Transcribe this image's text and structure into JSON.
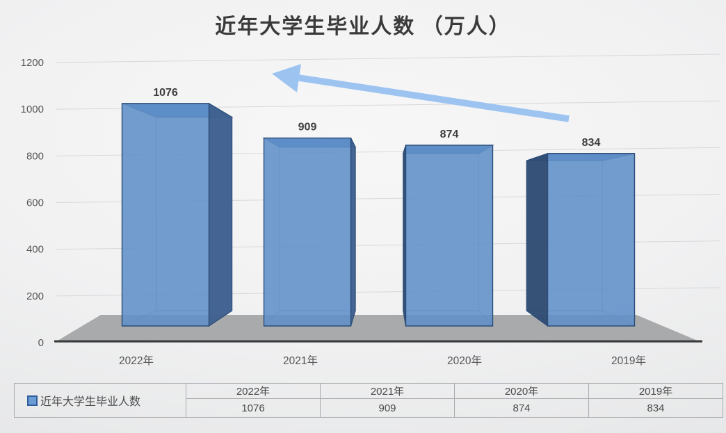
{
  "chart_data": {
    "type": "bar",
    "style": "3d-perspective-column",
    "title": "近年大学生毕业人数 （万人）",
    "categories": [
      "2022年",
      "2021年",
      "2020年",
      "2019年"
    ],
    "values": [
      1076,
      909,
      874,
      834
    ],
    "series_name": "近年大学生毕业人数",
    "xlabel": "",
    "ylabel": "",
    "ylim": [
      0,
      1200
    ],
    "yticks": [
      0,
      200,
      400,
      600,
      800,
      1000,
      1200
    ],
    "grid": true,
    "legend_position": "bottom-table-left",
    "data_labels_shown": true,
    "annotations": [
      {
        "type": "arrow",
        "meaning": "decreasing trend toward recent years",
        "direction": "up-left",
        "color": "#9dc4f1"
      }
    ],
    "colors": {
      "bar_front": "#6090c8",
      "bar_top": "#4d7db6",
      "bar_side_right": "#3f6190",
      "bar_side_left": "#304d74",
      "bar_edge": "#2b4c78",
      "floor": "#a9aaab",
      "axis_line": "#3d3d3d",
      "gridline": "#d3d4d6",
      "label_text": "#3d3d3d",
      "tick_text": "#565656",
      "arrow": "#9dc4f1"
    }
  },
  "table": {
    "legend_label": "近年大学生毕业人数",
    "headers": [
      "2022年",
      "2021年",
      "2020年",
      "2019年"
    ],
    "values": [
      "1076",
      "909",
      "874",
      "834"
    ]
  }
}
